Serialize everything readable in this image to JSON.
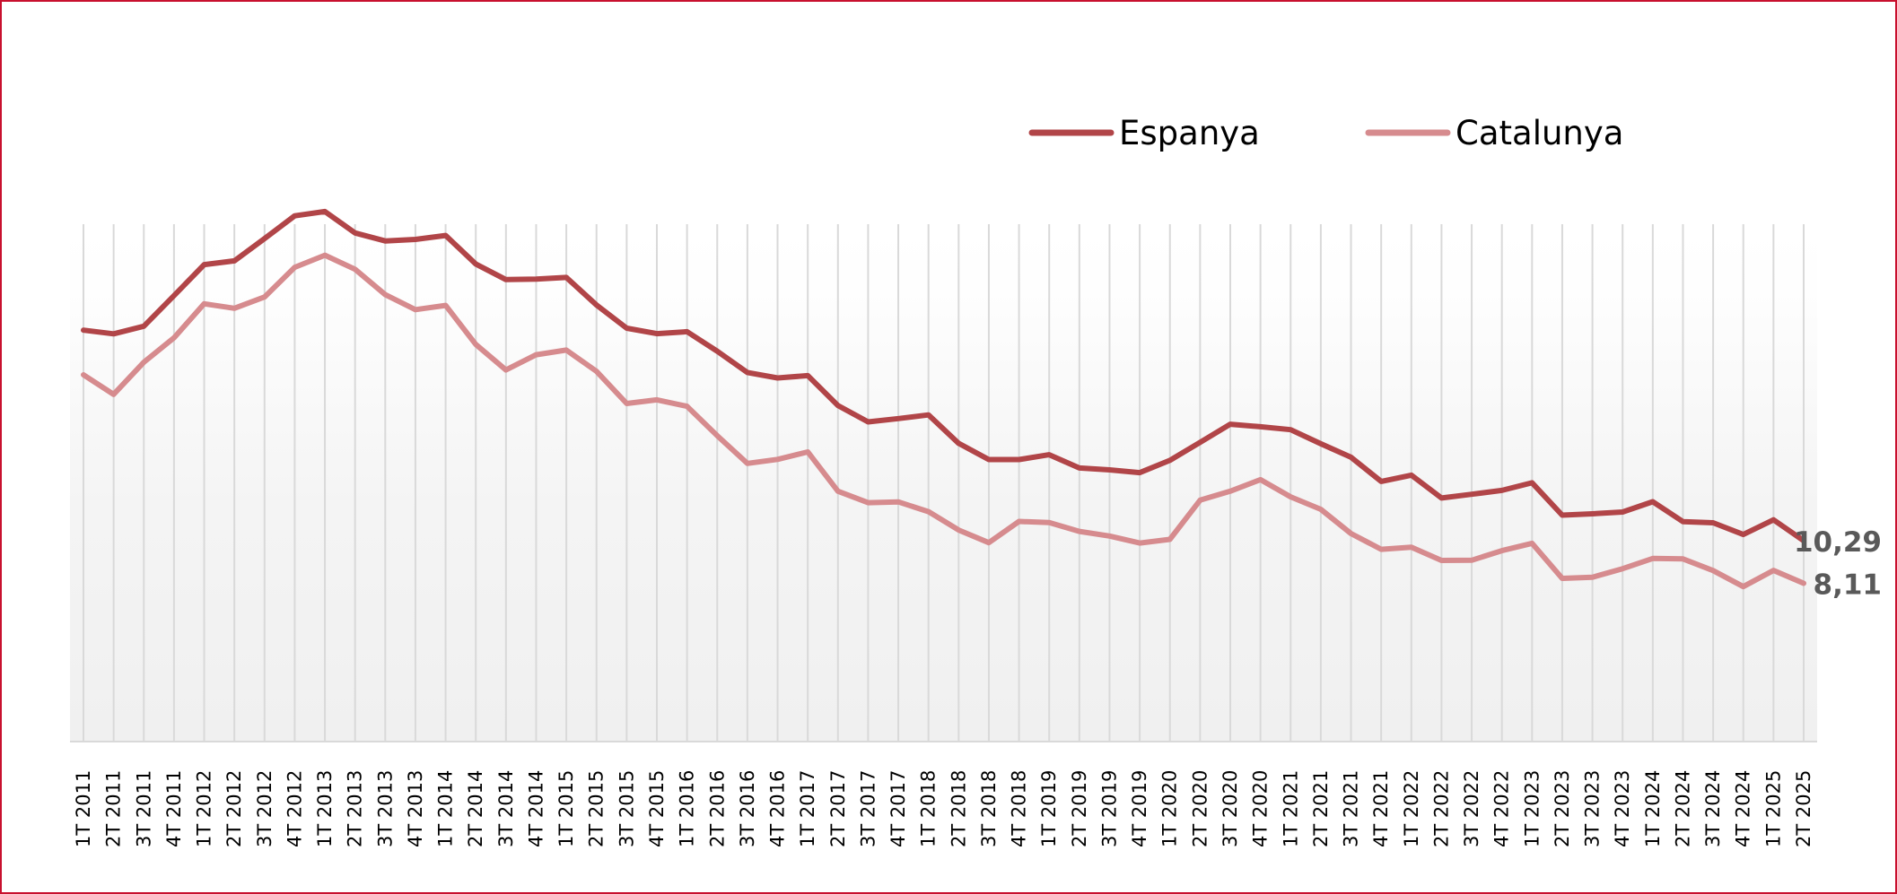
{
  "chart_data": {
    "type": "line",
    "categories": [
      "1T 2011",
      "2T 2011",
      "3T 2011",
      "4T 2011",
      "1T 2012",
      "2T 2012",
      "3T 2012",
      "4T 2012",
      "1T 2013",
      "2T 2013",
      "3T 2013",
      "4T 2013",
      "1T 2014",
      "2T 2014",
      "3T 2014",
      "4T 2014",
      "1T 2015",
      "2T 2015",
      "3T 2015",
      "4T 2015",
      "1T 2016",
      "2T 2016",
      "3T 2016",
      "4T 2016",
      "1T 2017",
      "2T 2017",
      "3T 2017",
      "4T 2017",
      "1T 2018",
      "2T 2018",
      "3T 2018",
      "4T 2018",
      "1T 2019",
      "2T 2019",
      "3T 2019",
      "4T 2019",
      "1T 2020",
      "2T 2020",
      "3T 2020",
      "4T 2020",
      "1T 2021",
      "2T 2021",
      "3T 2021",
      "4T 2021",
      "1T 2022",
      "2T 2022",
      "3T 2022",
      "4T 2022",
      "1T 2023",
      "2T 2023",
      "3T 2023",
      "4T 2023",
      "1T 2024",
      "2T 2024",
      "3T 2024",
      "4T 2024",
      "1T 2025",
      "2T 2025"
    ],
    "series": [
      {
        "name": "Espanya",
        "color": "#b14548",
        "values": [
          21.08,
          20.89,
          21.28,
          22.85,
          24.44,
          24.63,
          25.77,
          26.94,
          27.16,
          26.06,
          25.65,
          25.73,
          25.93,
          24.47,
          23.67,
          23.7,
          23.78,
          22.37,
          21.18,
          20.9,
          21.0,
          20.0,
          18.91,
          18.63,
          18.75,
          17.22,
          16.38,
          16.55,
          16.74,
          15.28,
          14.45,
          14.45,
          14.7,
          14.02,
          13.92,
          13.78,
          14.41,
          15.33,
          16.26,
          16.13,
          15.98,
          15.26,
          14.57,
          13.33,
          13.65,
          12.48,
          12.67,
          12.87,
          13.26,
          11.6,
          11.67,
          11.76,
          12.29,
          11.27,
          11.21,
          10.61,
          11.36,
          10.29
        ]
      },
      {
        "name": "Catalunya",
        "color": "#d68b8e",
        "values": [
          18.79,
          17.79,
          19.44,
          20.69,
          22.43,
          22.2,
          22.78,
          24.3,
          24.92,
          24.2,
          22.9,
          22.13,
          22.35,
          20.35,
          19.04,
          19.82,
          20.06,
          18.97,
          17.32,
          17.51,
          17.18,
          15.67,
          14.25,
          14.46,
          14.84,
          12.83,
          12.24,
          12.28,
          11.78,
          10.84,
          10.19,
          11.28,
          11.22,
          10.77,
          10.53,
          10.17,
          10.36,
          12.37,
          12.83,
          13.42,
          12.54,
          11.9,
          10.66,
          9.85,
          9.96,
          9.28,
          9.29,
          9.78,
          10.16,
          8.36,
          8.42,
          8.86,
          9.38,
          9.36,
          8.76,
          7.94,
          8.77,
          8.11
        ]
      }
    ],
    "end_labels": [
      {
        "series": "Espanya",
        "text": "10,29"
      },
      {
        "series": "Catalunya",
        "text": "8,11"
      }
    ],
    "ylim": [
      0,
      30
    ],
    "grid": "vertical",
    "legend_position": "top-right",
    "title": "",
    "xlabel": "",
    "ylabel": ""
  }
}
